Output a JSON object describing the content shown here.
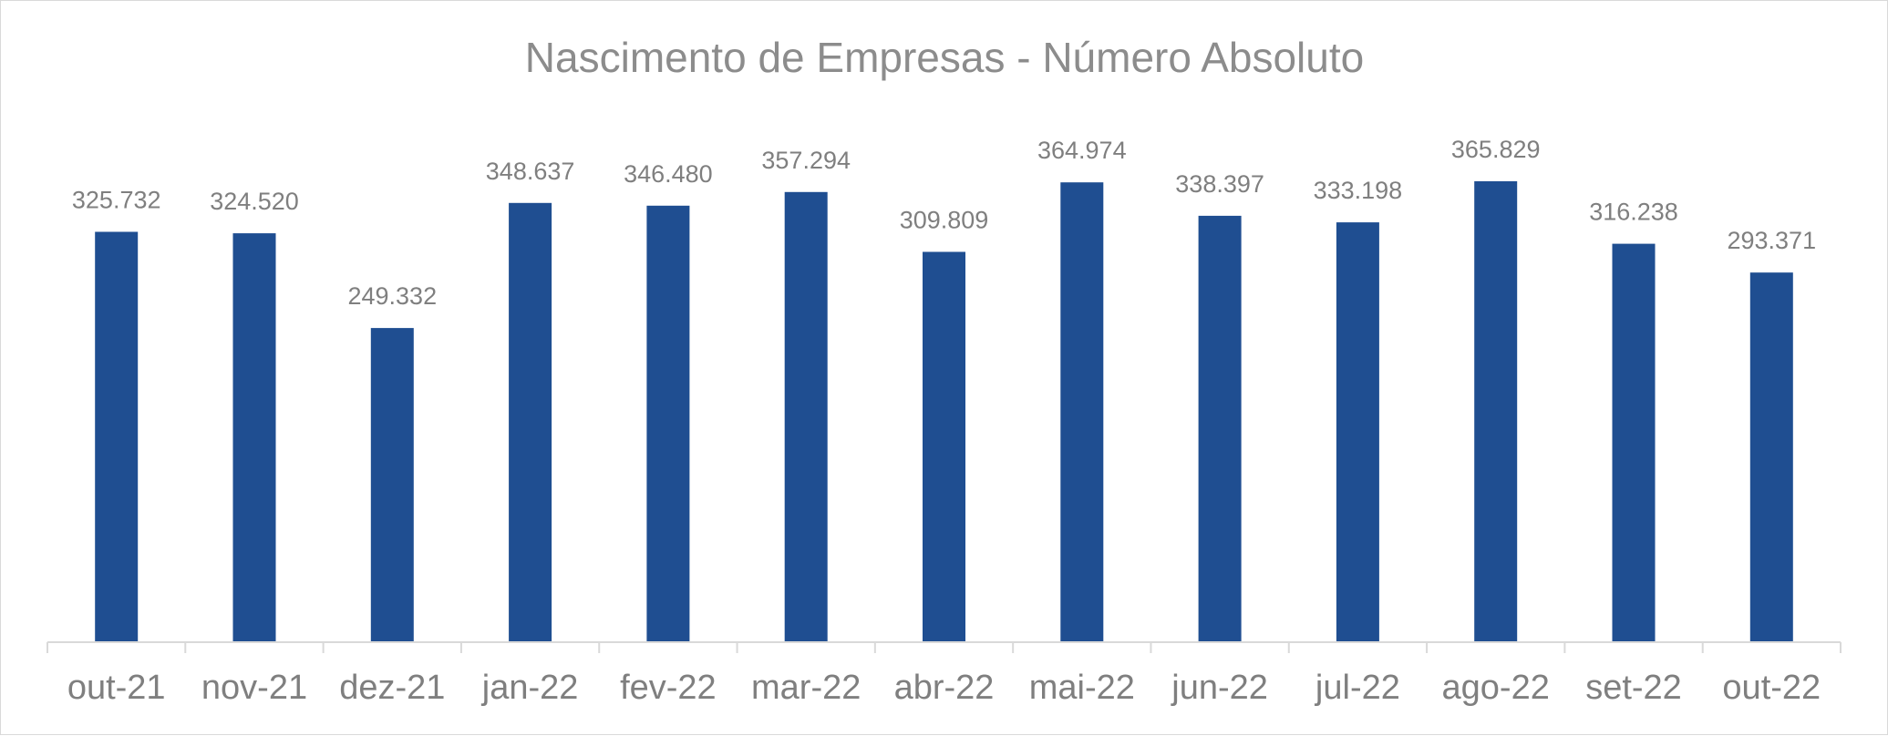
{
  "chart_data": {
    "type": "bar",
    "title": "Nascimento de Empresas - Número Absoluto",
    "xlabel": "",
    "ylabel": "",
    "categories": [
      "out-21",
      "nov-21",
      "dez-21",
      "jan-22",
      "fev-22",
      "mar-22",
      "abr-22",
      "mai-22",
      "jun-22",
      "jul-22",
      "ago-22",
      "set-22",
      "out-22"
    ],
    "values": [
      325732,
      324520,
      249332,
      348637,
      346480,
      357294,
      309809,
      364974,
      338397,
      333198,
      365829,
      316238,
      293371
    ],
    "data_labels": [
      "325.732",
      "324.520",
      "249.332",
      "348.637",
      "346.480",
      "357.294",
      "309.809",
      "364.974",
      "338.397",
      "333.198",
      "365.829",
      "316.238",
      "293.371"
    ],
    "ylim": [
      0,
      365829
    ],
    "grid": false,
    "legend": "none",
    "colors": {
      "bar": "#1f4e91",
      "axis": "#d9d9d9",
      "text": "#7f7f7f",
      "title": "#8c8c8c"
    }
  }
}
